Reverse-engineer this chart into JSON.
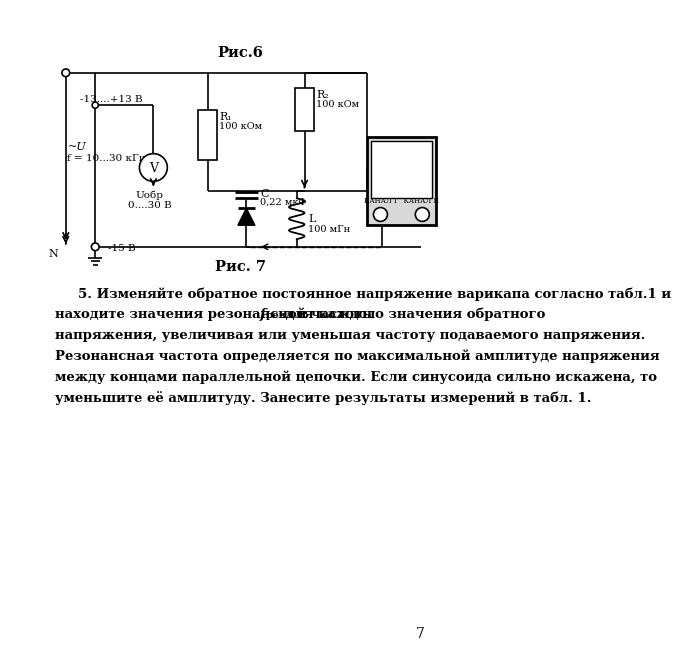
{
  "fig_title_1": "Рис.6",
  "fig_title_2": "Рис. 7",
  "page_number": "7",
  "label_13_13": "-13....+13 В",
  "label_au": "~U",
  "label_freq": "f = 10...30 кГц",
  "label_uobr_1": "Uобр",
  "label_uobr_2": "0....30 В",
  "label_minus15": "-15 В",
  "label_N": "N",
  "label_R1": "R₁",
  "label_R1_val": "100 кОм",
  "label_R2": "R₂",
  "label_R2_val": "100 кОм",
  "label_C": "C",
  "label_C_val": "0,22 мкФ",
  "label_L": "L",
  "label_L_val": "100 мГн",
  "label_kanal": "КАНАЛ I   КАНАЛ II",
  "bg_color": "#ffffff",
  "line_color": "#000000",
  "text_color": "#000000",
  "para_line1": "5. Изменяйте обратное постоянное напряжение варикапа согласно табл.1 и",
  "para_line2a": "находите значения резонансной частоты   ",
  "para_line2b": "f",
  "para_line2c": "рез",
  "para_line2d": " для каждого значения обратного",
  "para_line3": "напряжения, увеличивая или уменьшая частоту подаваемого напряжения.",
  "para_line4": "Резонансная частота определяется по максимальной амплитуде напряжения",
  "para_line5": "между концами параллельной цепочки. Если синусоида сильно искажена, то",
  "para_line6": "уменьшите её амплитуду. Занесите результаты измерений в табл. 1."
}
